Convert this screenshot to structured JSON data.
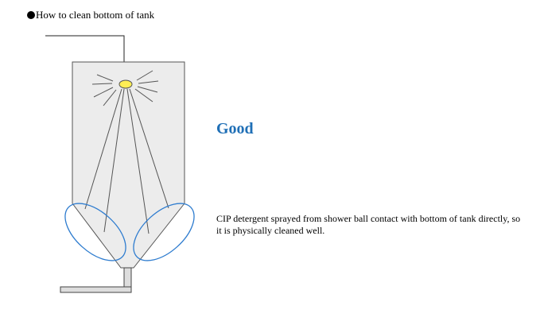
{
  "heading": {
    "bullet_icon": "black-circle-bullet",
    "text": "How to clean bottom of tank"
  },
  "status": {
    "label": "Good",
    "color": "#1f6fb6"
  },
  "description": {
    "text": "CIP detergent sprayed from shower ball contact with bottom of tank directly, so  it is physically cleaned well."
  },
  "colors": {
    "tank_fill": "#ececec",
    "tank_outline": "#555555",
    "spray_lines": "#555555",
    "shower_ball": "#ffee55",
    "cleaning_area_outline": "#2e7ccf"
  }
}
